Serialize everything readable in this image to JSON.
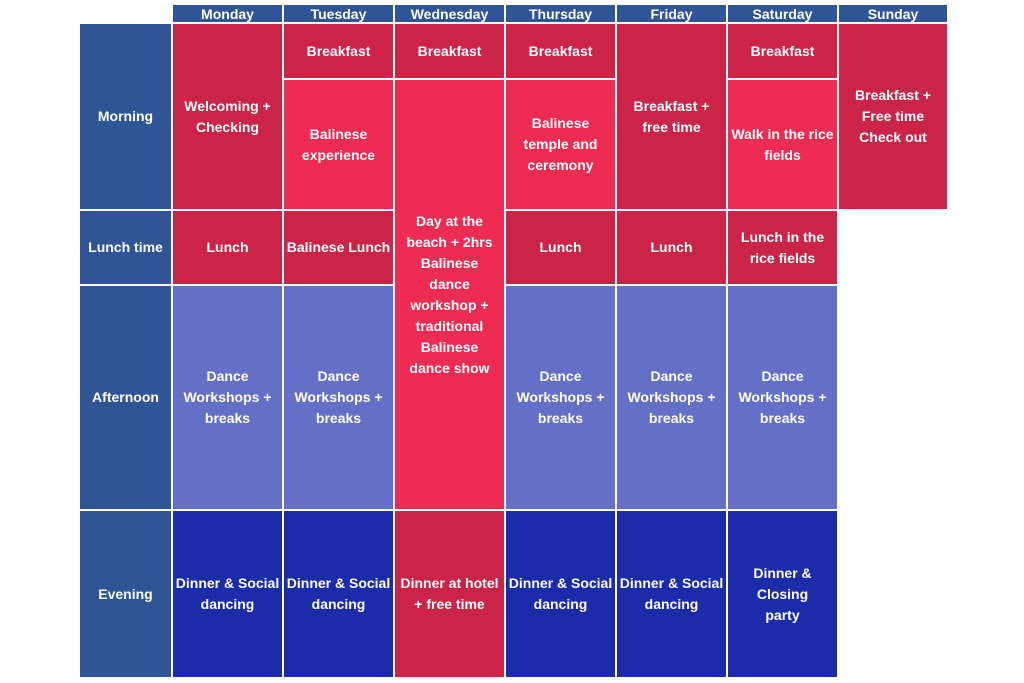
{
  "days": [
    "Monday",
    "Tuesday",
    "Wednesday",
    "Thursday",
    "Friday",
    "Saturday",
    "Sunday"
  ],
  "slots": [
    "Morning",
    "Lunch time",
    "Afternoon",
    "Evening"
  ],
  "activities": {
    "mon_morning": "Welcoming + Checking",
    "mon_lunch": "Lunch",
    "mon_afternoon": "Dance Workshops + breaks",
    "mon_evening": "Dinner & Social dancing",
    "tue_breakfast": "Breakfast",
    "tue_morning": "Balinese experience",
    "tue_lunch": "Balinese Lunch",
    "tue_afternoon": "Dance Workshops + breaks",
    "tue_evening": "Dinner & Social dancing",
    "wed_breakfast": "Breakfast",
    "wed_day": "Day at the beach + 2hrs Balinese dance workshop + traditional Balinese dance show",
    "wed_evening": "Dinner at hotel + free time",
    "thu_breakfast": "Breakfast",
    "thu_morning": "Balinese temple and ceremony",
    "thu_lunch": "Lunch",
    "thu_afternoon": "Dance Workshops + breaks",
    "thu_evening": "Dinner & Social dancing",
    "fri_morning": "Breakfast + free time",
    "fri_lunch": "Lunch",
    "fri_afternoon": "Dance Workshops + breaks",
    "fri_evening": "Dinner & Social dancing",
    "sat_breakfast": "Breakfast",
    "sat_morning": "Walk in the rice fields",
    "sat_lunch": "Lunch in the rice fields",
    "sat_afternoon": "Dance Workshops + breaks",
    "sat_evening": "Dinner & Closing party",
    "sun_morning": "Breakfast + Free time   Check out"
  },
  "colors": {
    "header_blue": "#2f5597",
    "red": "#cc2447",
    "pink": "#ee2b52",
    "lavender": "#6470c8",
    "navy": "#1c2baa"
  }
}
